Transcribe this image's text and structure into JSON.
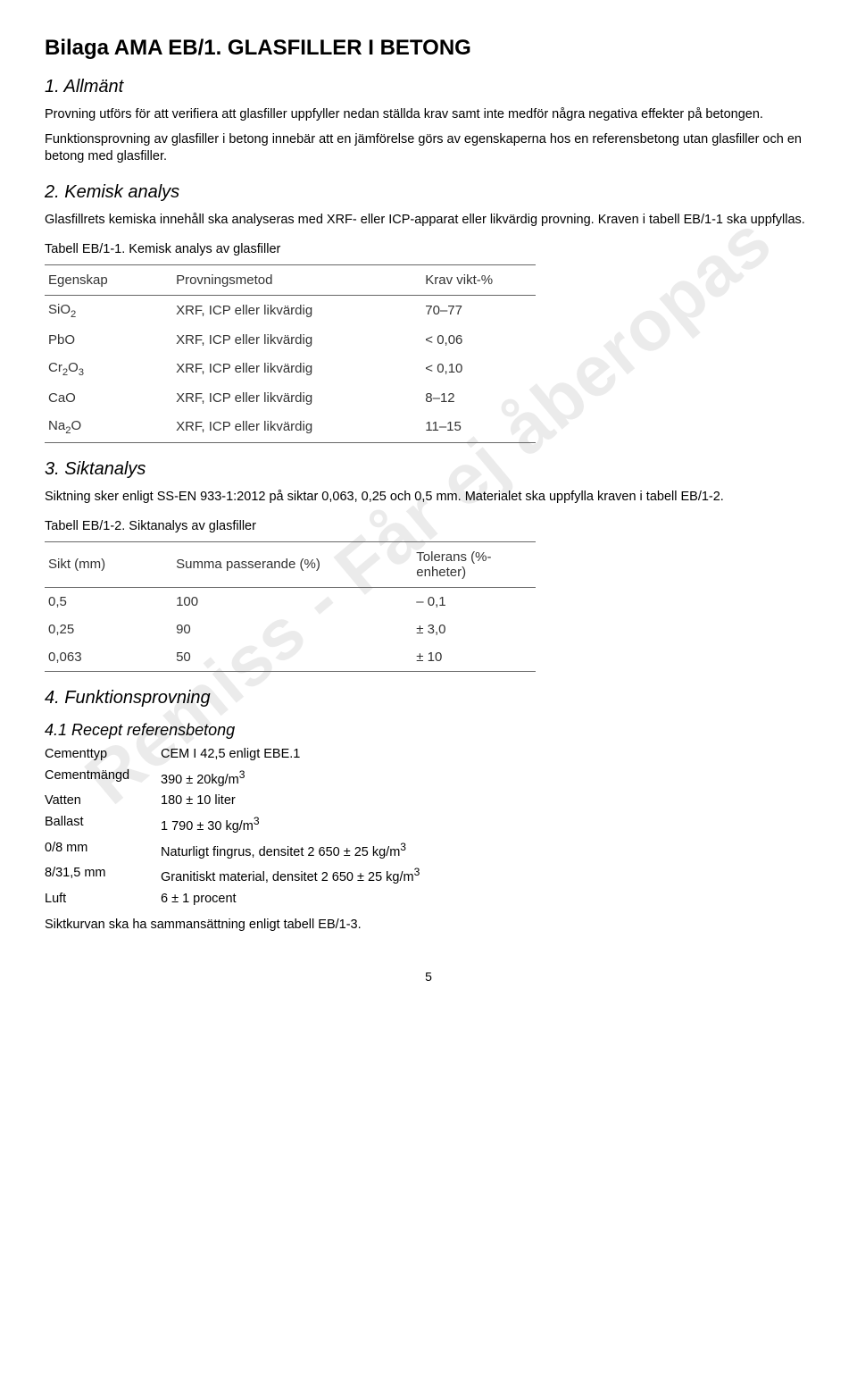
{
  "watermark": "Remiss - Får ej åberopas",
  "title": "Bilaga AMA EB/1. GLASFILLER I BETONG",
  "s1": {
    "heading": "1. Allmänt",
    "p1": "Provning utförs för att verifiera att glasfiller uppfyller nedan ställda krav samt inte medför några negativa effekter på betongen.",
    "p2": "Funktionsprovning av glasfiller i betong innebär att en jämförelse görs av egenskaperna hos en referensbetong utan glasfiller och en betong med glasfiller."
  },
  "s2": {
    "heading": "2. Kemisk analys",
    "p1": "Glasfillrets kemiska innehåll ska analyseras med XRF- eller ICP-apparat eller likvärdig provning. Kraven i tabell EB/1-1 ska uppfyllas.",
    "caption": "Tabell EB/1-1. Kemisk analys av glasfiller",
    "headers": [
      "Egenskap",
      "Provningsmetod",
      "Krav vikt-%"
    ],
    "rows": [
      {
        "c1_html": "SiO<sub>2</sub>",
        "c2": "XRF, ICP eller likvärdig",
        "c3": "70–77"
      },
      {
        "c1_html": "PbO",
        "c2": "XRF, ICP eller likvärdig",
        "c3": "< 0,06"
      },
      {
        "c1_html": "Cr<sub>2</sub>O<sub>3</sub>",
        "c2": "XRF, ICP eller likvärdig",
        "c3": "< 0,10"
      },
      {
        "c1_html": "CaO",
        "c2": "XRF, ICP eller likvärdig",
        "c3": "8–12"
      },
      {
        "c1_html": "Na<sub>2</sub>O",
        "c2": "XRF, ICP eller likvärdig",
        "c3": "11–15"
      }
    ]
  },
  "s3": {
    "heading": "3. Siktanalys",
    "p1": "Siktning sker enligt SS-EN 933-1:2012 på siktar 0,063, 0,25 och 0,5 mm. Materialet ska uppfylla kraven i tabell EB/1-2.",
    "caption": "Tabell EB/1-2. Siktanalys av glasfiller",
    "headers": [
      "Sikt (mm)",
      "Summa passerande (%)",
      "Tolerans (%-enheter)"
    ],
    "rows": [
      {
        "c1": "0,5",
        "c2": "100",
        "c3": "– 0,1"
      },
      {
        "c1": "0,25",
        "c2": "90",
        "c3": "± 3,0"
      },
      {
        "c1": "0,063",
        "c2": "50",
        "c3": "± 10"
      }
    ]
  },
  "s4": {
    "heading": "4. Funktionsprovning",
    "sub41": "4.1 Recept referensbetong",
    "recipe": [
      {
        "label": "Cementtyp",
        "val_html": "CEM I 42,5 enligt EBE.1"
      },
      {
        "label": "Cementmängd",
        "val_html": "390 ± 20kg/m<sup>3</sup>"
      },
      {
        "label": "Vatten",
        "val_html": "180 ± 10 liter"
      },
      {
        "label": "Ballast",
        "val_html": "1 790 ± 30 kg/m<sup>3</sup>"
      },
      {
        "label": "0/8 mm",
        "val_html": "Naturligt fingrus, densitet 2 650 ± 25 kg/m<sup>3</sup>"
      },
      {
        "label": "8/31,5 mm",
        "val_html": "Granitiskt material, densitet 2 650 ± 25 kg/m<sup>3</sup>"
      },
      {
        "label": "Luft",
        "val_html": "6 ± 1 procent"
      }
    ],
    "footer": "Siktkurvan ska ha sammansättning enligt tabell EB/1-3."
  },
  "page_number": "5",
  "colors": {
    "text": "#000000",
    "table_text": "#333333",
    "border": "#666666",
    "watermark": "rgba(0,0,0,0.08)",
    "background": "#ffffff"
  }
}
